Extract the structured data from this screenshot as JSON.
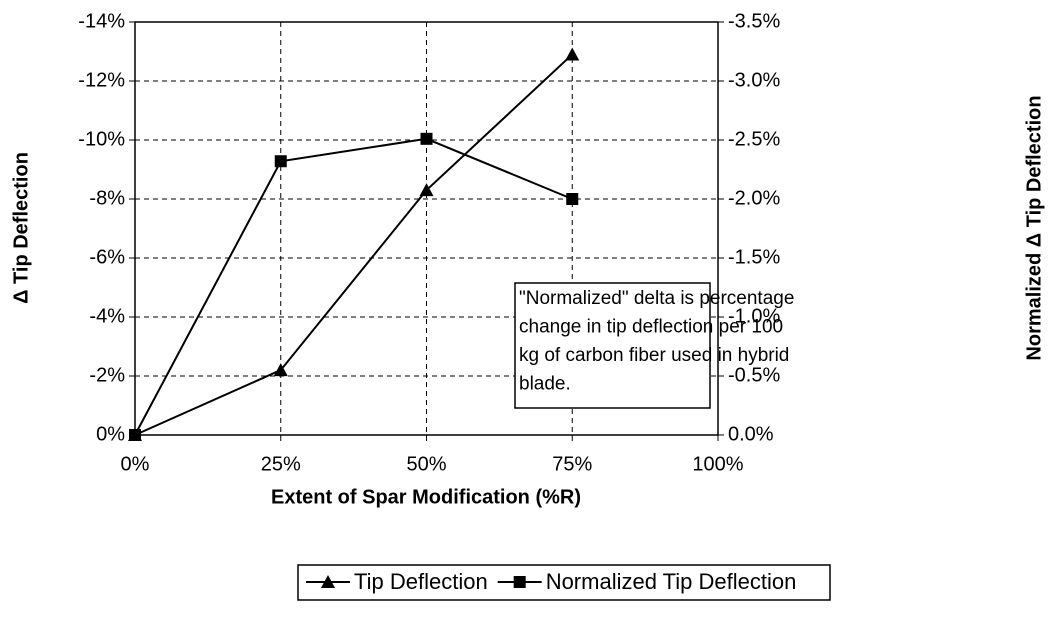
{
  "chart_data": {
    "type": "line",
    "x_label": "Extent of Spar Modification (%R)",
    "y_label": "Δ Tip Deflection",
    "y2_label": "Normalized Δ Tip Deflection",
    "x": [
      0,
      25,
      50,
      75
    ],
    "xlim": [
      0,
      100
    ],
    "xticks": [
      {
        "value": 0,
        "label": "0%"
      },
      {
        "value": 25,
        "label": "25%"
      },
      {
        "value": 50,
        "label": "50%"
      },
      {
        "value": 75,
        "label": "75%"
      },
      {
        "value": 100,
        "label": "100%"
      }
    ],
    "ylim": [
      0,
      -14
    ],
    "yticks": [
      {
        "value": 0,
        "label": "0%"
      },
      {
        "value": -2,
        "label": "-2%"
      },
      {
        "value": -4,
        "label": "-4%"
      },
      {
        "value": -6,
        "label": "-6%"
      },
      {
        "value": -8,
        "label": "-8%"
      },
      {
        "value": -10,
        "label": "-10%"
      },
      {
        "value": -12,
        "label": "-12%"
      },
      {
        "value": -14,
        "label": "-14%"
      }
    ],
    "y2lim": [
      0,
      -3.5
    ],
    "y2ticks": [
      {
        "value": 0,
        "label": "0.0%"
      },
      {
        "value": -0.5,
        "label": "-0.5%"
      },
      {
        "value": -1,
        "label": "-1.0%"
      },
      {
        "value": -1.5,
        "label": "-1.5%"
      },
      {
        "value": -2,
        "label": "-2.0%"
      },
      {
        "value": -2.5,
        "label": "-2.5%"
      },
      {
        "value": -3,
        "label": "-3.0%"
      },
      {
        "value": -3.5,
        "label": "-3.5%"
      }
    ],
    "grid": true,
    "series": [
      {
        "name": "Tip Deflection",
        "color": "#000000",
        "marker": "triangle",
        "values": [
          0,
          -2.2,
          -8.3,
          -12.9
        ]
      },
      {
        "name": "Normalized Tip Deflection",
        "color": "#000000",
        "marker": "square",
        "axis": "y2",
        "values": [
          0,
          -2.32,
          -2.51,
          -2.0
        ]
      }
    ],
    "annotation": [
      "\"Normalized\" delta is percentage",
      "change in tip deflection per 100",
      "kg of carbon fiber used in hybrid",
      "blade."
    ]
  }
}
